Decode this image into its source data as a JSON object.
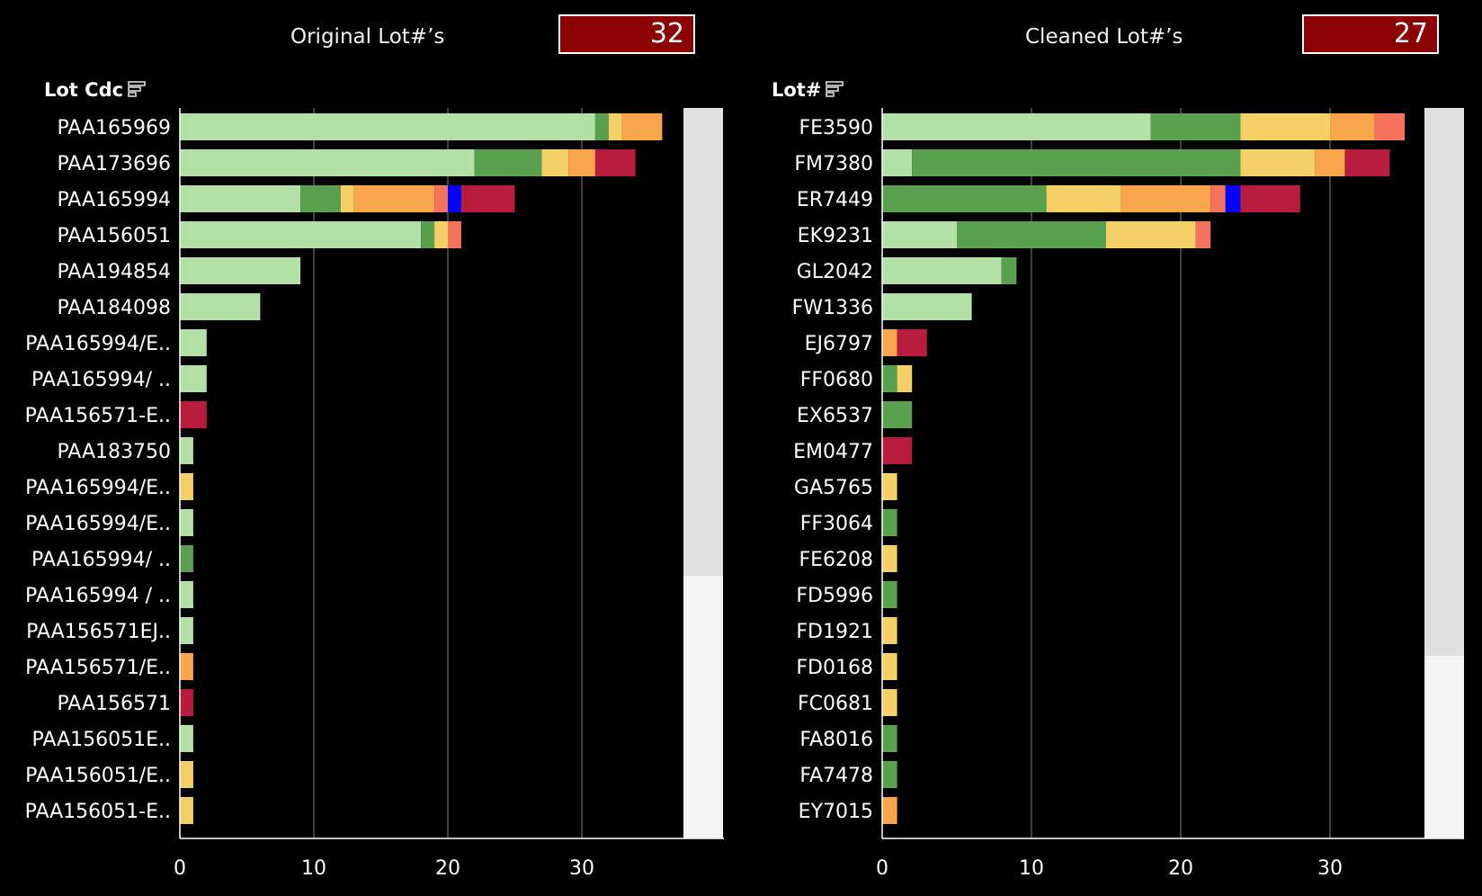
{
  "colors": {
    "light_green": "#b3e0a5",
    "dark_green": "#59a14f",
    "yellow": "#f5d066",
    "orange": "#f9a54b",
    "salmon": "#f5735c",
    "blue": "#0000ff",
    "crimson": "#b71c3c",
    "count_box": "#8b0000",
    "gridline": "#808080"
  },
  "left": {
    "title": "Original Lot#’s",
    "count": "32",
    "column_header": "Lot Cdc",
    "sort_icon": "sort-icon",
    "scroll_position": 0.64
  },
  "right": {
    "title": "Cleaned Lot#’s",
    "count": "27",
    "column_header": "Lot#",
    "sort_icon": "sort-icon",
    "scroll_position": 0.75
  },
  "chart_data": [
    {
      "type": "bar",
      "orientation": "horizontal",
      "stacked": true,
      "grid": true,
      "xlim": [
        0,
        38
      ],
      "x_ticks": [
        0,
        10,
        20,
        30
      ],
      "segment_order": [
        "light_green",
        "dark_green",
        "yellow",
        "orange",
        "salmon",
        "blue",
        "crimson"
      ],
      "categories": [
        "PAA165969",
        "PAA173696",
        "PAA165994",
        "PAA156051",
        "PAA194854",
        "PAA184098",
        "PAA165994/E..",
        "PAA165994/ ..",
        "PAA156571-E..",
        "PAA183750",
        "PAA165994/E..",
        "PAA165994/E..",
        "PAA165994/ ..",
        "PAA165994 / ..",
        "PAA156571EJ..",
        "PAA156571/E..",
        "PAA156571",
        "PAA156051E..",
        "PAA156051/E..",
        "PAA156051-E.."
      ],
      "values": [
        [
          31,
          1,
          1,
          3,
          0,
          0,
          0
        ],
        [
          22,
          5,
          2,
          2,
          0,
          0,
          3
        ],
        [
          9,
          3,
          1,
          6,
          1,
          1,
          4
        ],
        [
          18,
          1,
          1,
          0,
          1,
          0,
          0
        ],
        [
          9,
          0,
          0,
          0,
          0,
          0,
          0
        ],
        [
          6,
          0,
          0,
          0,
          0,
          0,
          0
        ],
        [
          2,
          0,
          0,
          0,
          0,
          0,
          0
        ],
        [
          2,
          0,
          0,
          0,
          0,
          0,
          0
        ],
        [
          0,
          0,
          0,
          0,
          0,
          0,
          2
        ],
        [
          1,
          0,
          0,
          0,
          0,
          0,
          0
        ],
        [
          0,
          0,
          1,
          0,
          0,
          0,
          0
        ],
        [
          1,
          0,
          0,
          0,
          0,
          0,
          0
        ],
        [
          0,
          1,
          0,
          0,
          0,
          0,
          0
        ],
        [
          1,
          0,
          0,
          0,
          0,
          0,
          0
        ],
        [
          1,
          0,
          0,
          0,
          0,
          0,
          0
        ],
        [
          0,
          0,
          0,
          1,
          0,
          0,
          0
        ],
        [
          0,
          0,
          0,
          0,
          0,
          0,
          1
        ],
        [
          1,
          0,
          0,
          0,
          0,
          0,
          0
        ],
        [
          0,
          0,
          1,
          0,
          0,
          0,
          0
        ],
        [
          0,
          0,
          1,
          0,
          0,
          0,
          0
        ]
      ]
    },
    {
      "type": "bar",
      "orientation": "horizontal",
      "stacked": true,
      "grid": true,
      "xlim": [
        0,
        36
      ],
      "x_ticks": [
        0,
        10,
        20,
        30
      ],
      "segment_order": [
        "light_green",
        "dark_green",
        "yellow",
        "orange",
        "salmon",
        "blue",
        "crimson"
      ],
      "categories": [
        "FE3590",
        "FM7380",
        "ER7449",
        "EK9231",
        "GL2042",
        "FW1336",
        "EJ6797",
        "FF0680",
        "EX6537",
        "EM0477",
        "GA5765",
        "FF3064",
        "FE6208",
        "FD5996",
        "FD1921",
        "FD0168",
        "FC0681",
        "FA8016",
        "FA7478",
        "EY7015"
      ],
      "values": [
        [
          18,
          6,
          6,
          3,
          2,
          0,
          0
        ],
        [
          2,
          22,
          5,
          2,
          0,
          0,
          3
        ],
        [
          0,
          11,
          5,
          6,
          1,
          1,
          4
        ],
        [
          5,
          10,
          6,
          0,
          1,
          0,
          0
        ],
        [
          8,
          1,
          0,
          0,
          0,
          0,
          0
        ],
        [
          6,
          0,
          0,
          0,
          0,
          0,
          0
        ],
        [
          0,
          0,
          0,
          1,
          0,
          0,
          2
        ],
        [
          0,
          1,
          1,
          0,
          0,
          0,
          0
        ],
        [
          0,
          2,
          0,
          0,
          0,
          0,
          0
        ],
        [
          0,
          0,
          0,
          0,
          0,
          0,
          2
        ],
        [
          0,
          0,
          1,
          0,
          0,
          0,
          0
        ],
        [
          0,
          1,
          0,
          0,
          0,
          0,
          0
        ],
        [
          0,
          0,
          1,
          0,
          0,
          0,
          0
        ],
        [
          0,
          1,
          0,
          0,
          0,
          0,
          0
        ],
        [
          0,
          0,
          1,
          0,
          0,
          0,
          0
        ],
        [
          0,
          0,
          1,
          0,
          0,
          0,
          0
        ],
        [
          0,
          0,
          1,
          0,
          0,
          0,
          0
        ],
        [
          0,
          1,
          0,
          0,
          0,
          0,
          0
        ],
        [
          0,
          1,
          0,
          0,
          0,
          0,
          0
        ],
        [
          0,
          0,
          0,
          1,
          0,
          0,
          0
        ]
      ]
    }
  ]
}
